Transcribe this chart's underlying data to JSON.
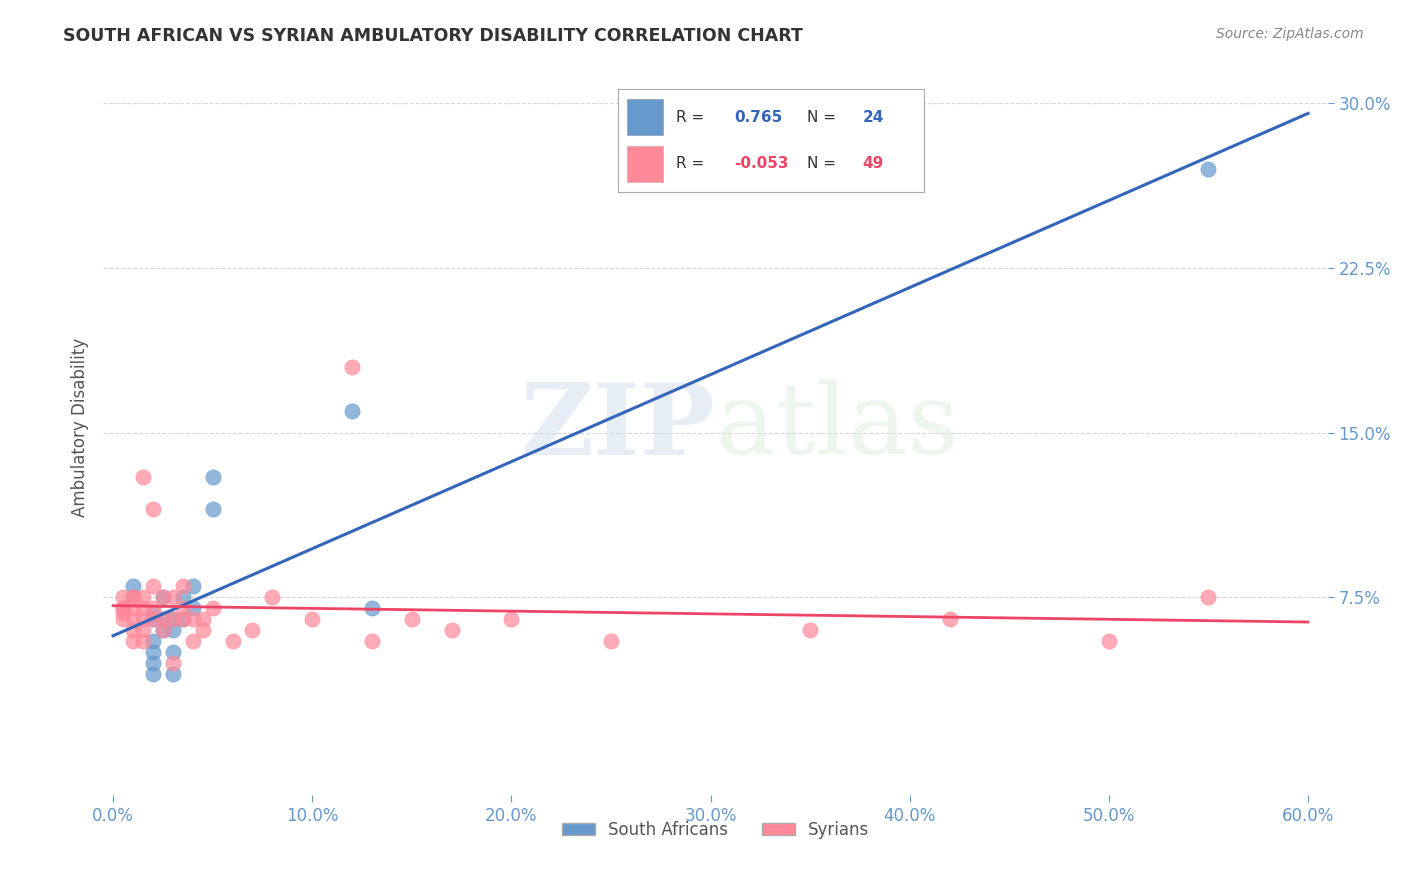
{
  "title": "SOUTH AFRICAN VS SYRIAN AMBULATORY DISABILITY CORRELATION CHART",
  "source": "Source: ZipAtlas.com",
  "ylabel": "Ambulatory Disability",
  "xlabel_ticks": [
    "0.0%",
    "10.0%",
    "20.0%",
    "30.0%",
    "40.0%",
    "50.0%",
    "60.0%"
  ],
  "ytick_labels": [
    "30.0%",
    "22.5%",
    "15.0%",
    "7.5%"
  ],
  "xlim": [
    0.0,
    0.6
  ],
  "ylim": [
    -0.015,
    0.32
  ],
  "blue_r": 0.765,
  "blue_n": 24,
  "pink_r": -0.053,
  "pink_n": 49,
  "blue_color": "#6699CC",
  "pink_color": "#FF8899",
  "blue_line_color": "#3366BB",
  "pink_line_color": "#EE4466",
  "watermark": "ZIPatlas",
  "blue_scatter_x": [
    0.01,
    0.01,
    0.02,
    0.02,
    0.02,
    0.02,
    0.02,
    0.02,
    0.025,
    0.025,
    0.025,
    0.03,
    0.03,
    0.03,
    0.03,
    0.035,
    0.035,
    0.04,
    0.04,
    0.05,
    0.05,
    0.12,
    0.13,
    0.55
  ],
  "blue_scatter_y": [
    0.075,
    0.08,
    0.04,
    0.045,
    0.05,
    0.055,
    0.065,
    0.068,
    0.06,
    0.065,
    0.075,
    0.04,
    0.05,
    0.06,
    0.065,
    0.065,
    0.075,
    0.07,
    0.08,
    0.115,
    0.13,
    0.16,
    0.07,
    0.27
  ],
  "pink_scatter_x": [
    0.005,
    0.005,
    0.005,
    0.005,
    0.005,
    0.01,
    0.01,
    0.01,
    0.01,
    0.01,
    0.01,
    0.015,
    0.015,
    0.015,
    0.015,
    0.015,
    0.015,
    0.02,
    0.02,
    0.02,
    0.02,
    0.025,
    0.025,
    0.025,
    0.03,
    0.03,
    0.03,
    0.035,
    0.035,
    0.035,
    0.04,
    0.04,
    0.045,
    0.045,
    0.05,
    0.06,
    0.07,
    0.08,
    0.1,
    0.12,
    0.13,
    0.15,
    0.17,
    0.2,
    0.25,
    0.35,
    0.42,
    0.5,
    0.55
  ],
  "pink_scatter_y": [
    0.065,
    0.068,
    0.07,
    0.07,
    0.075,
    0.055,
    0.06,
    0.065,
    0.07,
    0.075,
    0.075,
    0.055,
    0.06,
    0.065,
    0.07,
    0.075,
    0.13,
    0.065,
    0.07,
    0.08,
    0.115,
    0.06,
    0.065,
    0.075,
    0.045,
    0.065,
    0.075,
    0.065,
    0.07,
    0.08,
    0.055,
    0.065,
    0.06,
    0.065,
    0.07,
    0.055,
    0.06,
    0.075,
    0.065,
    0.18,
    0.055,
    0.065,
    0.06,
    0.065,
    0.055,
    0.06,
    0.065,
    0.055,
    0.075
  ],
  "grid_color": "#CCCCCC",
  "bg_color": "#FFFFFF",
  "title_color": "#333333",
  "axis_label_color": "#555555",
  "tick_color": "#6699CC"
}
